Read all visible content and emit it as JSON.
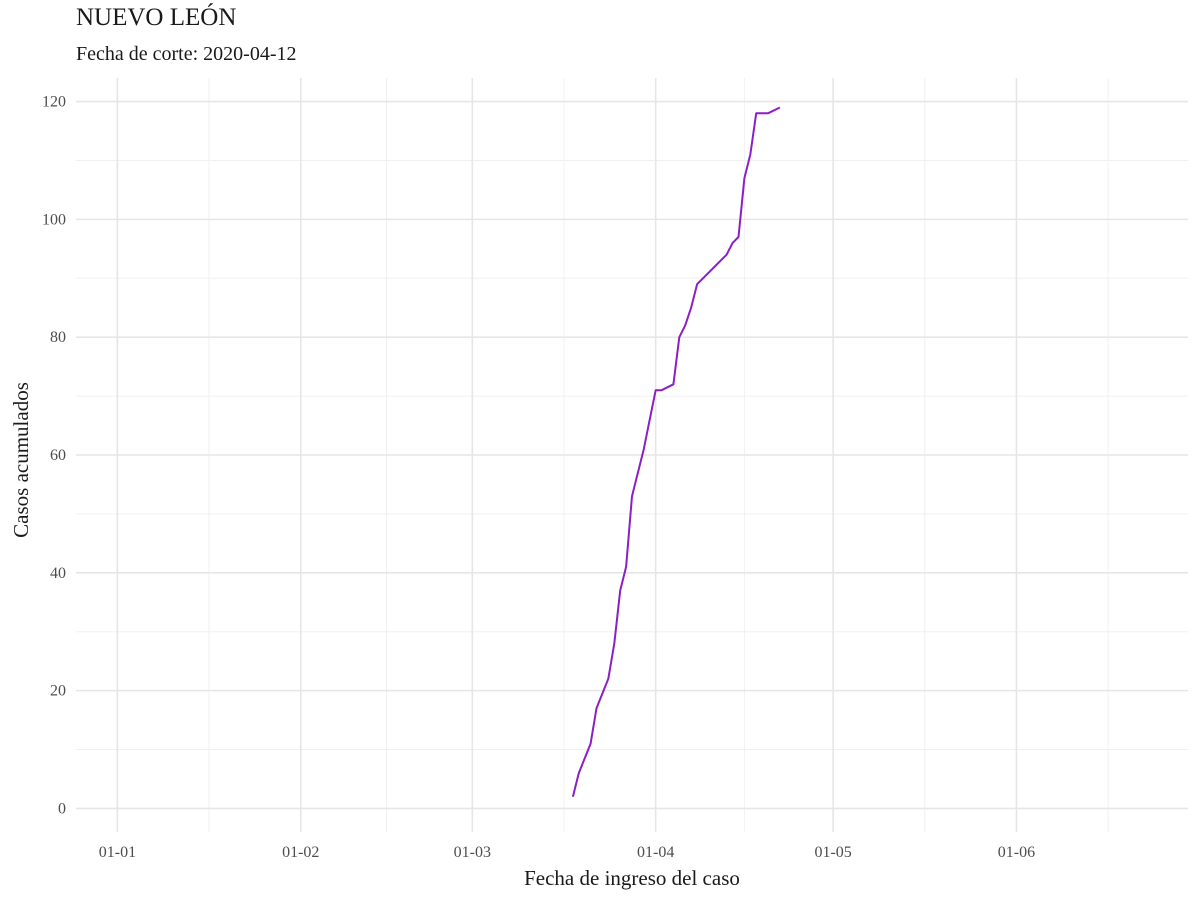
{
  "header": {
    "title": "NUEVO LEÓN",
    "subtitle": "Fecha de corte: 2020-04-12"
  },
  "chart_data": {
    "type": "line",
    "title": "NUEVO LEÓN",
    "subtitle": "Fecha de corte: 2020-04-12",
    "xlabel": "Fecha de ingreso del caso",
    "ylabel": "Casos acumulados",
    "x_ticks": [
      {
        "date": "2020-01-01",
        "label": "01-01"
      },
      {
        "date": "2020-02-01",
        "label": "01-02"
      },
      {
        "date": "2020-03-01",
        "label": "01-03"
      },
      {
        "date": "2020-04-01",
        "label": "01-04"
      },
      {
        "date": "2020-05-01",
        "label": "01-05"
      },
      {
        "date": "2020-06-01",
        "label": "01-06"
      }
    ],
    "xlim": [
      "2019-12-25",
      "2020-06-30"
    ],
    "ylim": [
      -4,
      124
    ],
    "y_ticks": [
      0,
      20,
      40,
      60,
      80,
      100,
      120
    ],
    "grid": true,
    "line_color": "#8B1FC7",
    "grid_major_color": "#e6e6e6",
    "grid_minor_color": "#f0f0f0",
    "series": [
      {
        "x": [
          "2020-03-18",
          "2020-03-19",
          "2020-03-21",
          "2020-03-22",
          "2020-03-24",
          "2020-03-25",
          "2020-03-26",
          "2020-03-27",
          "2020-03-28",
          "2020-03-30",
          "2020-03-31",
          "2020-04-01",
          "2020-04-02",
          "2020-04-04",
          "2020-04-05",
          "2020-04-06",
          "2020-04-07",
          "2020-04-08",
          "2020-04-09",
          "2020-04-10",
          "2020-04-11",
          "2020-04-12",
          "2020-04-13",
          "2020-04-14",
          "2020-04-15",
          "2020-04-16",
          "2020-04-17",
          "2020-04-18",
          "2020-04-19",
          "2020-04-20",
          "2020-04-22"
        ],
        "y": [
          2,
          6,
          11,
          17,
          22,
          28,
          37,
          41,
          53,
          61,
          66,
          71,
          71,
          72,
          80,
          82,
          85,
          89,
          90,
          91,
          92,
          93,
          94,
          96,
          97,
          107,
          111,
          118,
          118,
          118,
          119
        ]
      }
    ]
  }
}
